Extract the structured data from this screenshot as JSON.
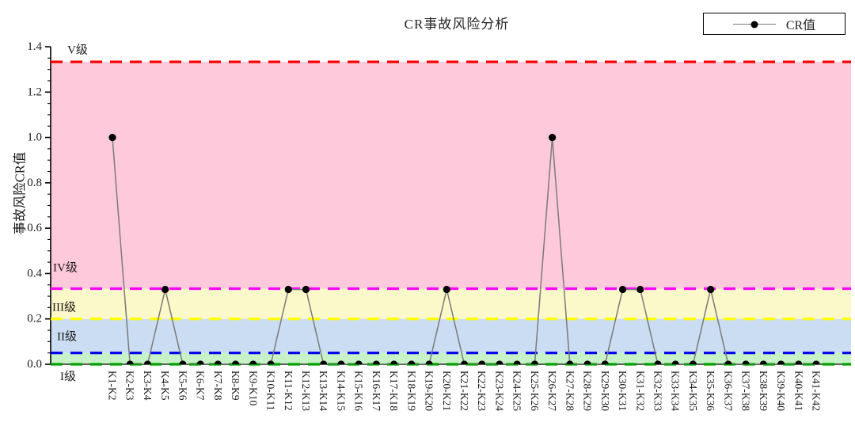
{
  "chart": {
    "title": "CR事故风险分析",
    "legend": {
      "label": "CR值"
    },
    "y_axis_title": "事故风险CR值",
    "y_tick_labels": [
      "0.0",
      "0.2",
      "0.4",
      "0.6",
      "0.8",
      "1.0",
      "1.2",
      "1.4"
    ]
  },
  "chart_data": {
    "type": "line",
    "title": "CR事故风险分析",
    "xlabel": "",
    "ylabel": "事故风险CR值",
    "ylim": [
      0,
      1.4
    ],
    "y_major_step": 0.2,
    "y_minor_step": 0.05,
    "grid": false,
    "legend_position": "top-right",
    "x_label_rotation_deg": 90,
    "line_color": "#7A7A7A",
    "marker_color": "#000000",
    "categories": [
      "K1-K2",
      "K2-K3",
      "K3-K4",
      "K4-K5",
      "K5-K6",
      "K6-K7",
      "K7-K8",
      "K8-K9",
      "K9-K10",
      "K10-K11",
      "K11-K12",
      "K12-K13",
      "K13-K14",
      "K14-K15",
      "K15-K16",
      "K16-K17",
      "K17-K18",
      "K18-K19",
      "K19-K20",
      "K20-K21",
      "K21-K22",
      "K22-K23",
      "K23-K24",
      "K24-K25",
      "K25-K26",
      "K26-K27",
      "K27-K28",
      "K28-K29",
      "K29-K30",
      "K30-K31",
      "K31-K32",
      "K32-K33",
      "K33-K34",
      "K34-K35",
      "K35-K36",
      "K36-K37",
      "K37-K38",
      "K38-K39",
      "K39-K40",
      "K40-K41",
      "K41-K42"
    ],
    "series": [
      {
        "name": "CR值",
        "values": [
          1,
          0,
          0,
          0.33,
          0,
          0,
          0,
          0,
          0,
          0,
          0.33,
          0.33,
          0,
          0,
          0,
          0,
          0,
          0,
          0,
          0.33,
          0,
          0,
          0,
          0,
          0,
          1,
          0,
          0,
          0,
          0.33,
          0.33,
          0,
          0,
          0,
          0.33,
          0,
          0,
          0,
          0,
          0,
          0
        ]
      }
    ],
    "risk_zones": [
      {
        "label": "I级",
        "band_range": [
          0,
          0.05
        ],
        "band_color": "#C7F2C7",
        "threshold": 0.0,
        "threshold_color": "#00A000",
        "label_value_y": -0.055
      },
      {
        "label": "II级",
        "band_range": [
          0.05,
          0.2
        ],
        "band_color": "#CADDF2",
        "threshold": 0.05,
        "threshold_color": "#0000EE",
        "label_value_y": 0.12
      },
      {
        "label": "III级",
        "band_range": [
          0.2,
          0.3333
        ],
        "band_color": "#FBF8C9",
        "threshold": 0.2,
        "threshold_color": "#FFFF00",
        "label_value_y": 0.25
      },
      {
        "label": "IV级",
        "band_range": [
          0.3333,
          1.3333
        ],
        "band_color": "#FFC9DC",
        "threshold": 0.3333,
        "threshold_color": "#FF00FF",
        "label_value_y": 0.425
      },
      {
        "label": "V级",
        "band_range": null,
        "band_color": null,
        "threshold": 1.3333,
        "threshold_color": "#FF0000",
        "label_value_y": 1.385
      }
    ]
  }
}
